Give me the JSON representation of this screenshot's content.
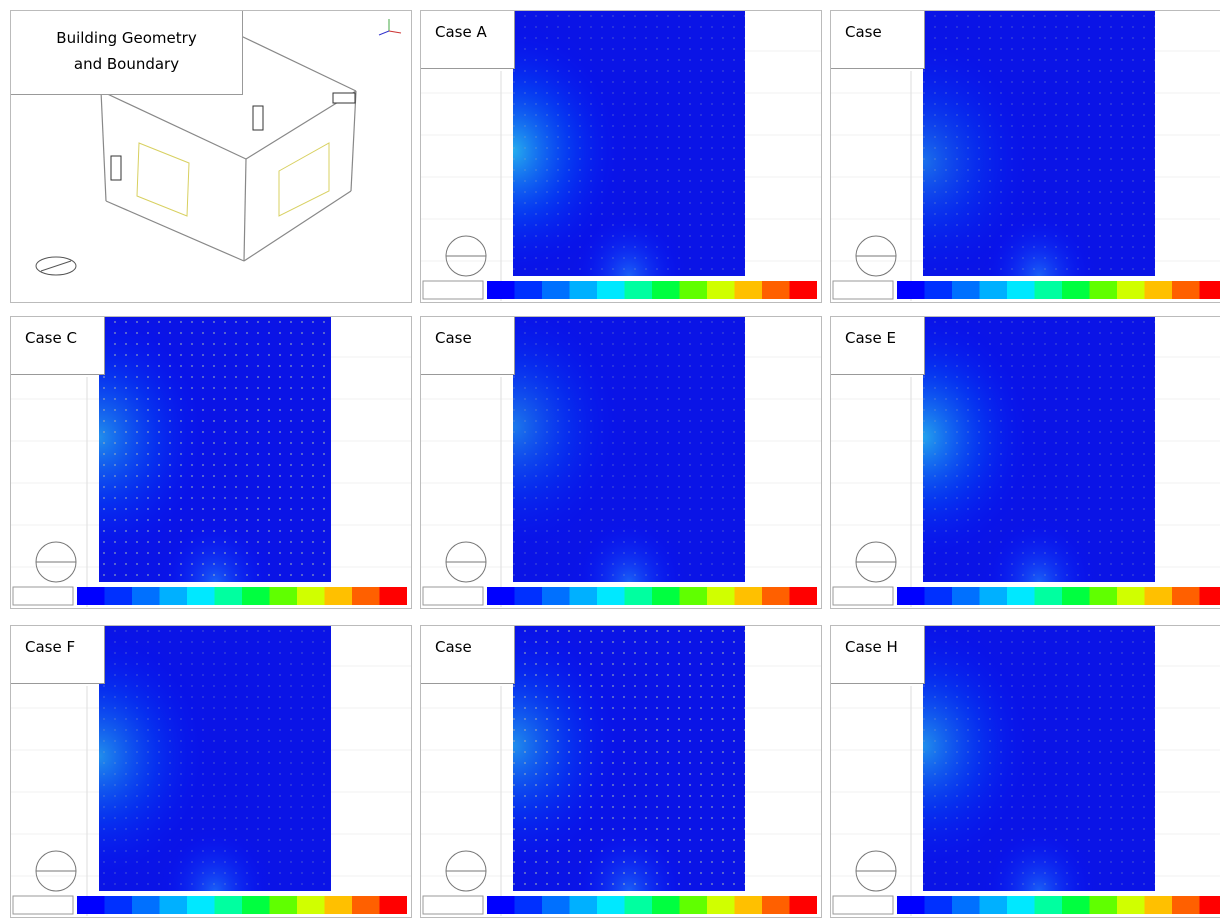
{
  "panels": [
    {
      "label_lines": [
        "Building Geometry",
        "and Boundary"
      ]
    },
    {
      "label": "Case A"
    },
    {
      "label": "Case"
    },
    {
      "label": "Case C"
    },
    {
      "label": "Case"
    },
    {
      "label": "Case E"
    },
    {
      "label": "Case F"
    },
    {
      "label": "Case"
    },
    {
      "label": "Case H"
    }
  ]
}
